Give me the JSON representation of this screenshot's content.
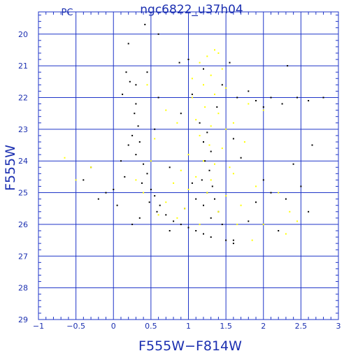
{
  "chart_data": {
    "type": "scatter",
    "title": "ngc6822_u37h04",
    "subtitle": "PC",
    "xlabel": "F555W−F814W",
    "ylabel": "F555W",
    "xlim": [
      -1,
      3
    ],
    "ylim": [
      29,
      19.3
    ],
    "y_inverted": true,
    "grid": true,
    "x_ticks": [
      -1,
      -0.5,
      0,
      0.5,
      1,
      1.5,
      2,
      2.5,
      3
    ],
    "x_tick_labels": [
      "−1",
      "−0.5",
      "0",
      "0.5",
      "1",
      "1.5",
      "2",
      "2.5",
      "3"
    ],
    "y_ticks": [
      20,
      21,
      22,
      23,
      24,
      25,
      26,
      27,
      28,
      29
    ],
    "y_tick_labels": [
      "20",
      "21",
      "22",
      "23",
      "24",
      "25",
      "26",
      "27",
      "28",
      "29"
    ],
    "series": [
      {
        "color": "#000000",
        "values": [
          [
            0.2,
            20.3
          ],
          [
            0.42,
            19.7
          ],
          [
            0.6,
            20.0
          ],
          [
            1.0,
            20.8
          ],
          [
            1.2,
            21.1
          ],
          [
            0.88,
            20.9
          ],
          [
            1.55,
            20.9
          ],
          [
            0.17,
            21.2
          ],
          [
            0.22,
            21.5
          ],
          [
            0.12,
            21.9
          ],
          [
            0.3,
            22.2
          ],
          [
            0.28,
            22.5
          ],
          [
            0.33,
            22.9
          ],
          [
            0.25,
            23.2
          ],
          [
            0.35,
            23.4
          ],
          [
            0.3,
            23.8
          ],
          [
            0.4,
            24.1
          ],
          [
            0.45,
            24.4
          ],
          [
            0.38,
            24.7
          ],
          [
            0.5,
            24.9
          ],
          [
            0.55,
            25.1
          ],
          [
            0.48,
            25.3
          ],
          [
            0.62,
            25.4
          ],
          [
            0.58,
            25.6
          ],
          [
            0.7,
            25.7
          ],
          [
            0.8,
            25.9
          ],
          [
            0.9,
            26.0
          ],
          [
            1.0,
            26.1
          ],
          [
            1.1,
            26.2
          ],
          [
            1.2,
            26.3
          ],
          [
            1.3,
            26.4
          ],
          [
            0.75,
            26.2
          ],
          [
            1.15,
            22.8
          ],
          [
            1.25,
            23.1
          ],
          [
            1.2,
            23.4
          ],
          [
            1.3,
            23.7
          ],
          [
            1.22,
            24.0
          ],
          [
            1.28,
            24.3
          ],
          [
            1.18,
            24.6
          ],
          [
            1.32,
            24.8
          ],
          [
            1.25,
            25.0
          ],
          [
            1.35,
            25.2
          ],
          [
            1.2,
            25.4
          ],
          [
            1.4,
            25.6
          ],
          [
            1.3,
            25.8
          ],
          [
            1.45,
            26.0
          ],
          [
            1.5,
            26.5
          ],
          [
            1.6,
            26.6
          ],
          [
            1.65,
            22.0
          ],
          [
            1.8,
            21.8
          ],
          [
            1.9,
            22.1
          ],
          [
            2.0,
            22.3
          ],
          [
            2.1,
            22.0
          ],
          [
            2.25,
            22.2
          ],
          [
            2.45,
            22.0
          ],
          [
            2.8,
            22.0
          ],
          [
            2.32,
            21.0
          ],
          [
            2.6,
            22.1
          ],
          [
            2.65,
            23.5
          ],
          [
            2.4,
            24.1
          ],
          [
            2.5,
            24.8
          ],
          [
            2.3,
            25.2
          ],
          [
            2.6,
            25.6
          ],
          [
            2.2,
            26.2
          ],
          [
            2.0,
            24.6
          ],
          [
            2.1,
            25.0
          ],
          [
            1.9,
            25.3
          ],
          [
            1.8,
            25.9
          ],
          [
            1.6,
            26.5
          ],
          [
            0.05,
            25.4
          ],
          [
            -0.1,
            25.0
          ],
          [
            -0.2,
            25.2
          ],
          [
            -0.4,
            24.6
          ],
          [
            -0.3,
            24.2
          ],
          [
            0.1,
            24.0
          ],
          [
            0.0,
            24.9
          ],
          [
            0.15,
            24.5
          ],
          [
            0.25,
            26.0
          ],
          [
            0.35,
            25.8
          ],
          [
            0.95,
            25.5
          ],
          [
            1.05,
            24.7
          ],
          [
            1.1,
            25.2
          ],
          [
            1.38,
            22.3
          ],
          [
            1.45,
            21.6
          ],
          [
            1.6,
            23.3
          ],
          [
            1.7,
            23.9
          ],
          [
            0.55,
            23.0
          ],
          [
            0.75,
            24.2
          ],
          [
            0.9,
            22.5
          ],
          [
            0.2,
            23.5
          ],
          [
            0.3,
            21.6
          ],
          [
            0.45,
            21.2
          ],
          [
            0.6,
            22.0
          ],
          [
            1.05,
            21.9
          ]
        ]
      },
      {
        "color": "#ffff00",
        "values": [
          [
            1.25,
            20.7
          ],
          [
            1.4,
            20.6
          ],
          [
            1.15,
            20.9
          ],
          [
            1.3,
            21.3
          ],
          [
            1.45,
            21.1
          ],
          [
            1.2,
            21.6
          ],
          [
            1.35,
            21.9
          ],
          [
            1.5,
            21.7
          ],
          [
            1.05,
            22.0
          ],
          [
            1.22,
            22.3
          ],
          [
            1.4,
            22.5
          ],
          [
            1.1,
            22.7
          ],
          [
            1.3,
            22.9
          ],
          [
            1.5,
            23.0
          ],
          [
            1.15,
            23.2
          ],
          [
            1.28,
            23.5
          ],
          [
            1.45,
            23.6
          ],
          [
            1.0,
            23.8
          ],
          [
            1.2,
            24.0
          ],
          [
            1.35,
            24.1
          ],
          [
            1.55,
            24.2
          ],
          [
            0.9,
            24.3
          ],
          [
            1.1,
            24.5
          ],
          [
            1.3,
            24.6
          ],
          [
            1.6,
            24.4
          ],
          [
            0.8,
            24.7
          ],
          [
            1.0,
            24.9
          ],
          [
            1.25,
            25.0
          ],
          [
            1.5,
            25.1
          ],
          [
            0.7,
            25.3
          ],
          [
            0.95,
            25.5
          ],
          [
            1.4,
            25.6
          ],
          [
            1.7,
            25.4
          ],
          [
            0.6,
            25.7
          ],
          [
            0.85,
            25.8
          ],
          [
            1.15,
            26.0
          ],
          [
            1.65,
            26.0
          ],
          [
            0.5,
            24.0
          ],
          [
            0.55,
            23.3
          ],
          [
            0.7,
            22.4
          ],
          [
            0.45,
            21.6
          ],
          [
            0.3,
            24.6
          ],
          [
            0.4,
            25.0
          ],
          [
            -0.65,
            23.9
          ],
          [
            -0.3,
            24.2
          ],
          [
            -0.5,
            24.6
          ],
          [
            1.8,
            22.2
          ],
          [
            2.0,
            22.4
          ],
          [
            1.9,
            24.8
          ],
          [
            2.2,
            25.0
          ],
          [
            2.35,
            25.6
          ],
          [
            2.45,
            25.9
          ],
          [
            2.0,
            26.0
          ],
          [
            2.3,
            26.3
          ],
          [
            1.85,
            26.5
          ],
          [
            1.75,
            23.4
          ],
          [
            1.6,
            22.8
          ],
          [
            1.35,
            20.5
          ],
          [
            1.05,
            21.4
          ],
          [
            0.85,
            22.8
          ]
        ]
      }
    ]
  }
}
